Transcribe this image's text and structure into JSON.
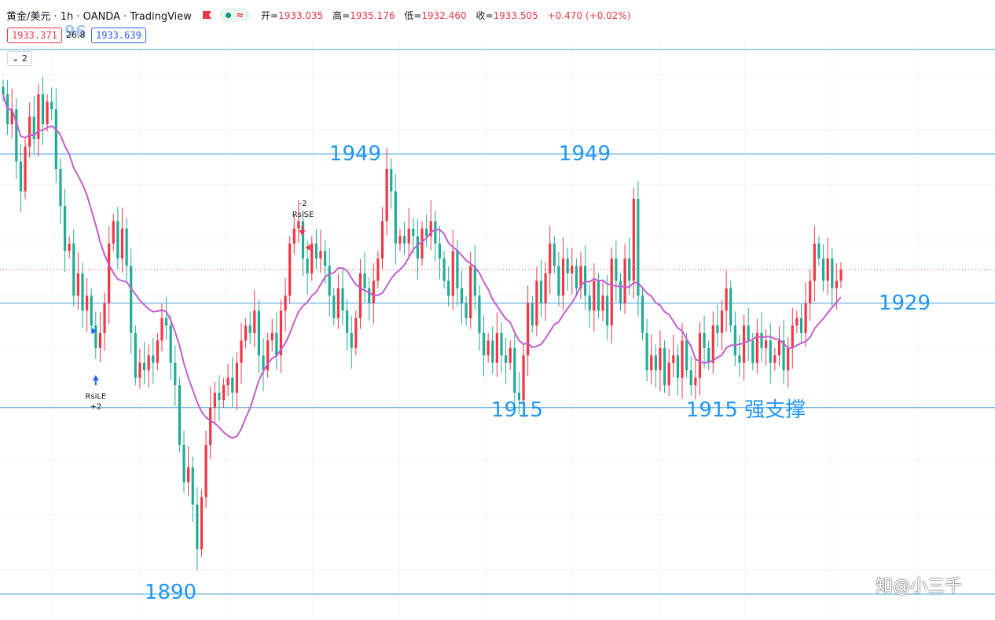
{
  "header": {
    "symbol": "黄金/美元 · 1h · OANDA · TradingView",
    "pill_icon": "status-dot-icon",
    "open_label": "开=",
    "open": "1933.035",
    "high_label": "高=",
    "high": "1935.176",
    "low_label": "低=",
    "low": "1932.460",
    "close_label": "收=",
    "close": "1933.505",
    "change": "+0.470 (+0.02%)"
  },
  "trade": {
    "sell_price": "1933.371",
    "spread": "26.8",
    "buy_price": "1933.639",
    "ghost_text": "96"
  },
  "indicators_toggle": "2",
  "watermark": "知@小三千",
  "colors": {
    "up": "#f23645",
    "down": "#22ab94",
    "ma": "#c25fcf",
    "level": "#2196f3",
    "level_line": "#4aa3dc"
  },
  "chart_data": {
    "type": "candlestick",
    "ylim": [
      1888,
      1965
    ],
    "levels": [
      {
        "value": 1963,
        "label": ""
      },
      {
        "value": 1949,
        "label": "1949"
      },
      {
        "value": 1949,
        "label": "1949"
      },
      {
        "value": 1929,
        "label": "1929"
      },
      {
        "value": 1915,
        "label": "1915"
      },
      {
        "value": 1915,
        "label": "1915 强支撑"
      },
      {
        "value": 1890,
        "label": "1890"
      }
    ],
    "current_price": 1933.5,
    "signals": [
      {
        "label": "RsiLE",
        "qty": "+2",
        "direction": "buy",
        "bar": 21
      },
      {
        "label": "RsiSE",
        "qty": "-2",
        "direction": "sell",
        "bar": 68
      }
    ],
    "ma_label": "",
    "closes": [
      1957,
      1953,
      1955,
      1948,
      1944,
      1950,
      1954,
      1951,
      1957,
      1953,
      1956,
      1955,
      1947,
      1942,
      1936,
      1937,
      1930,
      1933,
      1928,
      1930,
      1926,
      1923,
      1925,
      1929,
      1937,
      1940,
      1935,
      1939,
      1934,
      1925,
      1919,
      1921,
      1920,
      1922,
      1921,
      1924,
      1927,
      1926,
      1921,
      1918,
      1910,
      1905,
      1907,
      1902,
      1896,
      1903,
      1910,
      1915,
      1917,
      1916,
      1918,
      1919,
      1917,
      1921,
      1924,
      1926,
      1925,
      1928,
      1922,
      1920,
      1924,
      1925,
      1922,
      1928,
      1930,
      1937,
      1939,
      1940,
      1935,
      1933,
      1937,
      1935,
      1936,
      1934,
      1930,
      1927,
      1931,
      1928,
      1925,
      1923,
      1927,
      1933,
      1931,
      1929,
      1932,
      1935,
      1940,
      1947,
      1944,
      1937,
      1938,
      1937,
      1939,
      1938,
      1935,
      1939,
      1938,
      1940,
      1937,
      1935,
      1932,
      1930,
      1936,
      1931,
      1929,
      1927,
      1934,
      1930,
      1925,
      1922,
      1924,
      1921,
      1925,
      1922,
      1921,
      1923,
      1917,
      1916,
      1922,
      1929,
      1926,
      1932,
      1929,
      1933,
      1937,
      1934,
      1930,
      1935,
      1933,
      1934,
      1931,
      1934,
      1930,
      1928,
      1932,
      1928,
      1930,
      1926,
      1935,
      1932,
      1929,
      1935,
      1932,
      1943,
      1930,
      1925,
      1920,
      1922,
      1920,
      1923,
      1918,
      1921,
      1922,
      1919,
      1924,
      1920,
      1918,
      1919,
      1925,
      1923,
      1921,
      1926,
      1925,
      1928,
      1931,
      1926,
      1922,
      1921,
      1926,
      1924,
      1921,
      1925,
      1923,
      1924,
      1921,
      1922,
      1924,
      1920,
      1923,
      1926,
      1927,
      1925,
      1929,
      1932,
      1937,
      1935,
      1932,
      1935,
      1931,
      1932,
      1933.5
    ]
  }
}
